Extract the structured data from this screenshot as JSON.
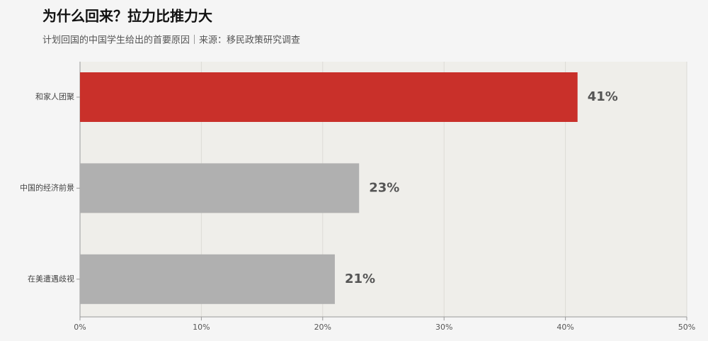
{
  "chart_data": {
    "type": "barh",
    "title": "为什么回来？拉力比推力大",
    "subtitle": "计划回国的中国学生给出的首要原因｜来源：移民政策研究调查",
    "categories": [
      "和家人团聚",
      "中国的经济前景",
      "在美遭遇歧视"
    ],
    "values": [
      41,
      23,
      21
    ],
    "value_labels": [
      "41%",
      "23%",
      "21%"
    ],
    "colors": [
      "#c9302a",
      "#b0b0b0",
      "#b0b0b0"
    ],
    "xlim": [
      0,
      50
    ],
    "xticks": [
      {
        "value": 0,
        "label": "0%"
      },
      {
        "value": 10,
        "label": "10%"
      },
      {
        "value": 20,
        "label": "20%"
      },
      {
        "value": 30,
        "label": "30%"
      },
      {
        "value": 40,
        "label": "40%"
      },
      {
        "value": 50,
        "label": "50%"
      }
    ],
    "grid": true
  }
}
